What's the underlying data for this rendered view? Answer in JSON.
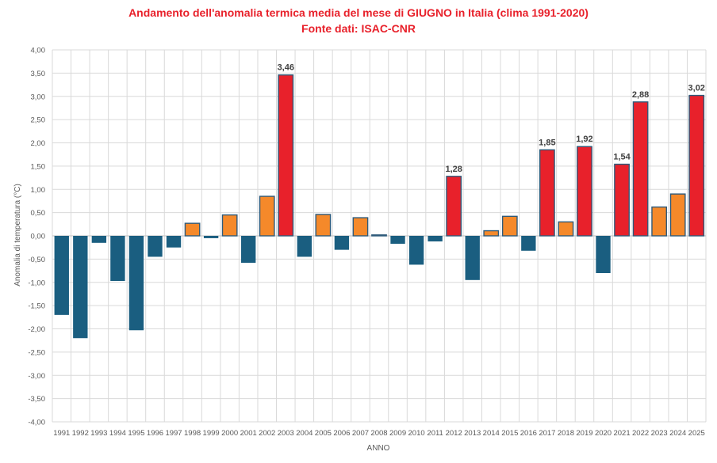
{
  "chart_data": {
    "type": "bar",
    "title": "Andamento dell'anomalia termica media del mese di GIUGNO in Italia (clima 1991-2020)",
    "subtitle": "Fonte dati: ISAC-CNR",
    "xlabel": "ANNO",
    "ylabel": "Anomalia di temperatura (°C)",
    "ylim": [
      -4.0,
      4.0
    ],
    "ytick_step": 0.5,
    "ytick_labels": [
      "4,00",
      "3,50",
      "3,00",
      "2,50",
      "2,00",
      "1,50",
      "1,00",
      "0,50",
      "0,00",
      "-0,50",
      "-1,00",
      "-1,50",
      "-2,00",
      "-2,50",
      "-3,00",
      "-3,50",
      "-4,00"
    ],
    "grid": true,
    "categories": [
      "1991",
      "1992",
      "1993",
      "1994",
      "1995",
      "1996",
      "1997",
      "1998",
      "1999",
      "2000",
      "2001",
      "2002",
      "2003",
      "2004",
      "2005",
      "2006",
      "2007",
      "2008",
      "2009",
      "2010",
      "2011",
      "2012",
      "2013",
      "2014",
      "2015",
      "2016",
      "2017",
      "2018",
      "2019",
      "2020",
      "2021",
      "2022",
      "2023",
      "2024",
      "2025"
    ],
    "values": [
      -1.7,
      -2.2,
      -0.15,
      -0.97,
      -2.03,
      -0.45,
      -0.25,
      0.27,
      -0.05,
      0.45,
      -0.58,
      0.85,
      3.46,
      -0.45,
      0.46,
      -0.3,
      0.39,
      0.02,
      -0.17,
      -0.62,
      -0.12,
      1.28,
      -0.95,
      0.11,
      0.42,
      -0.32,
      1.85,
      0.3,
      1.92,
      -0.8,
      1.54,
      2.88,
      0.62,
      0.9,
      3.02
    ],
    "data_labels": {
      "2003": "3,46",
      "2012": "1,28",
      "2017": "1,85",
      "2019": "1,92",
      "2021": "1,54",
      "2022": "2,88",
      "2025": "3,02"
    },
    "colors": {
      "negative": "#1a5e80",
      "positive": "#f5892a",
      "highlight": "#e8212b",
      "bar_edge": "#2e5a7a",
      "grid": "#d9d9d9"
    }
  }
}
